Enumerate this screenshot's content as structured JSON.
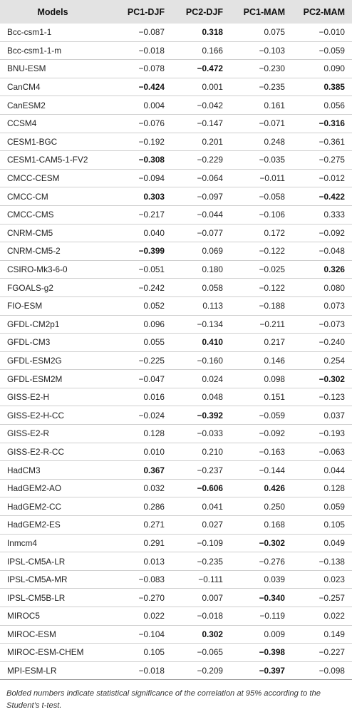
{
  "headers": [
    "Models",
    "PC1-DJF",
    "PC2-DJF",
    "PC1-MAM",
    "PC2-MAM"
  ],
  "rows": [
    {
      "model": "Bcc-csm1-1",
      "v": [
        "−0.087",
        "0.318",
        "0.075",
        "−0.010"
      ],
      "b": [
        0,
        1,
        0,
        0
      ]
    },
    {
      "model": "Bcc-csm1-1-m",
      "v": [
        "−0.018",
        "0.166",
        "−0.103",
        "−0.059"
      ],
      "b": [
        0,
        0,
        0,
        0
      ]
    },
    {
      "model": "BNU-ESM",
      "v": [
        "−0.078",
        "−0.472",
        "−0.230",
        "0.090"
      ],
      "b": [
        0,
        1,
        0,
        0
      ]
    },
    {
      "model": "CanCM4",
      "v": [
        "−0.424",
        "0.001",
        "−0.235",
        "0.385"
      ],
      "b": [
        1,
        0,
        0,
        1
      ]
    },
    {
      "model": "CanESM2",
      "v": [
        "0.004",
        "−0.042",
        "0.161",
        "0.056"
      ],
      "b": [
        0,
        0,
        0,
        0
      ]
    },
    {
      "model": "CCSM4",
      "v": [
        "−0.076",
        "−0.147",
        "−0.071",
        "−0.316"
      ],
      "b": [
        0,
        0,
        0,
        1
      ]
    },
    {
      "model": "CESM1-BGC",
      "v": [
        "−0.192",
        "0.201",
        "0.248",
        "−0.361"
      ],
      "b": [
        0,
        0,
        0,
        0
      ]
    },
    {
      "model": "CESM1-CAM5-1-FV2",
      "v": [
        "−0.308",
        "−0.229",
        "−0.035",
        "−0.275"
      ],
      "b": [
        1,
        0,
        0,
        0
      ]
    },
    {
      "model": "CMCC-CESM",
      "v": [
        "−0.094",
        "−0.064",
        "−0.011",
        "−0.012"
      ],
      "b": [
        0,
        0,
        0,
        0
      ]
    },
    {
      "model": "CMCC-CM",
      "v": [
        "0.303",
        "−0.097",
        "−0.058",
        "−0.422"
      ],
      "b": [
        1,
        0,
        0,
        1
      ]
    },
    {
      "model": "CMCC-CMS",
      "v": [
        "−0.217",
        "−0.044",
        "−0.106",
        "0.333"
      ],
      "b": [
        0,
        0,
        0,
        0
      ]
    },
    {
      "model": "CNRM-CM5",
      "v": [
        "0.040",
        "−0.077",
        "0.172",
        "−0.092"
      ],
      "b": [
        0,
        0,
        0,
        0
      ]
    },
    {
      "model": "CNRM-CM5-2",
      "v": [
        "−0.399",
        "0.069",
        "−0.122",
        "−0.048"
      ],
      "b": [
        1,
        0,
        0,
        0
      ]
    },
    {
      "model": "CSIRO-Mk3-6-0",
      "v": [
        "−0.051",
        "0.180",
        "−0.025",
        "0.326"
      ],
      "b": [
        0,
        0,
        0,
        1
      ]
    },
    {
      "model": "FGOALS-g2",
      "v": [
        "−0.242",
        "0.058",
        "−0.122",
        "0.080"
      ],
      "b": [
        0,
        0,
        0,
        0
      ]
    },
    {
      "model": "FIO-ESM",
      "v": [
        "0.052",
        "0.113",
        "−0.188",
        "0.073"
      ],
      "b": [
        0,
        0,
        0,
        0
      ]
    },
    {
      "model": "GFDL-CM2p1",
      "v": [
        "0.096",
        "−0.134",
        "−0.211",
        "−0.073"
      ],
      "b": [
        0,
        0,
        0,
        0
      ]
    },
    {
      "model": "GFDL-CM3",
      "v": [
        "0.055",
        "0.410",
        "0.217",
        "−0.240"
      ],
      "b": [
        0,
        1,
        0,
        0
      ]
    },
    {
      "model": "GFDL-ESM2G",
      "v": [
        "−0.225",
        "−0.160",
        "0.146",
        "0.254"
      ],
      "b": [
        0,
        0,
        0,
        0
      ]
    },
    {
      "model": "GFDL-ESM2M",
      "v": [
        "−0.047",
        "0.024",
        "0.098",
        "−0.302"
      ],
      "b": [
        0,
        0,
        0,
        1
      ]
    },
    {
      "model": "GISS-E2-H",
      "v": [
        "0.016",
        "0.048",
        "0.151",
        "−0.123"
      ],
      "b": [
        0,
        0,
        0,
        0
      ]
    },
    {
      "model": "GISS-E2-H-CC",
      "v": [
        "−0.024",
        "−0.392",
        "−0.059",
        "0.037"
      ],
      "b": [
        0,
        1,
        0,
        0
      ]
    },
    {
      "model": "GISS-E2-R",
      "v": [
        "0.128",
        "−0.033",
        "−0.092",
        "−0.193"
      ],
      "b": [
        0,
        0,
        0,
        0
      ]
    },
    {
      "model": "GISS-E2-R-CC",
      "v": [
        "0.010",
        "0.210",
        "−0.163",
        "−0.063"
      ],
      "b": [
        0,
        0,
        0,
        0
      ]
    },
    {
      "model": "HadCM3",
      "v": [
        "0.367",
        "−0.237",
        "−0.144",
        "0.044"
      ],
      "b": [
        1,
        0,
        0,
        0
      ]
    },
    {
      "model": "HadGEM2-AO",
      "v": [
        "0.032",
        "−0.606",
        "0.426",
        "0.128"
      ],
      "b": [
        0,
        1,
        1,
        0
      ]
    },
    {
      "model": "HadGEM2-CC",
      "v": [
        "0.286",
        "0.041",
        "0.250",
        "0.059"
      ],
      "b": [
        0,
        0,
        0,
        0
      ]
    },
    {
      "model": "HadGEM2-ES",
      "v": [
        "0.271",
        "0.027",
        "0.168",
        "0.105"
      ],
      "b": [
        0,
        0,
        0,
        0
      ]
    },
    {
      "model": "Inmcm4",
      "v": [
        "0.291",
        "−0.109",
        "−0.302",
        "0.049"
      ],
      "b": [
        0,
        0,
        1,
        0
      ]
    },
    {
      "model": "IPSL-CM5A-LR",
      "v": [
        "0.013",
        "−0.235",
        "−0.276",
        "−0.138"
      ],
      "b": [
        0,
        0,
        0,
        0
      ]
    },
    {
      "model": "IPSL-CM5A-MR",
      "v": [
        "−0.083",
        "−0.111",
        "0.039",
        "0.023"
      ],
      "b": [
        0,
        0,
        0,
        0
      ]
    },
    {
      "model": "IPSL-CM5B-LR",
      "v": [
        "−0.270",
        "0.007",
        "−0.340",
        "−0.257"
      ],
      "b": [
        0,
        0,
        1,
        0
      ]
    },
    {
      "model": "MIROC5",
      "v": [
        "0.022",
        "−0.018",
        "−0.119",
        "0.022"
      ],
      "b": [
        0,
        0,
        0,
        0
      ]
    },
    {
      "model": "MIROC-ESM",
      "v": [
        "−0.104",
        "0.302",
        "0.009",
        "0.149"
      ],
      "b": [
        0,
        1,
        0,
        0
      ]
    },
    {
      "model": "MIROC-ESM-CHEM",
      "v": [
        "0.105",
        "−0.065",
        "−0.398",
        "−0.227"
      ],
      "b": [
        0,
        0,
        1,
        0
      ]
    },
    {
      "model": "MPI-ESM-LR",
      "v": [
        "−0.018",
        "−0.209",
        "−0.397",
        "−0.098"
      ],
      "b": [
        0,
        0,
        1,
        0
      ]
    }
  ],
  "footnote": "Bolded numbers indicate statistical significance of the correlation at 95% according to the Student’s t-test."
}
